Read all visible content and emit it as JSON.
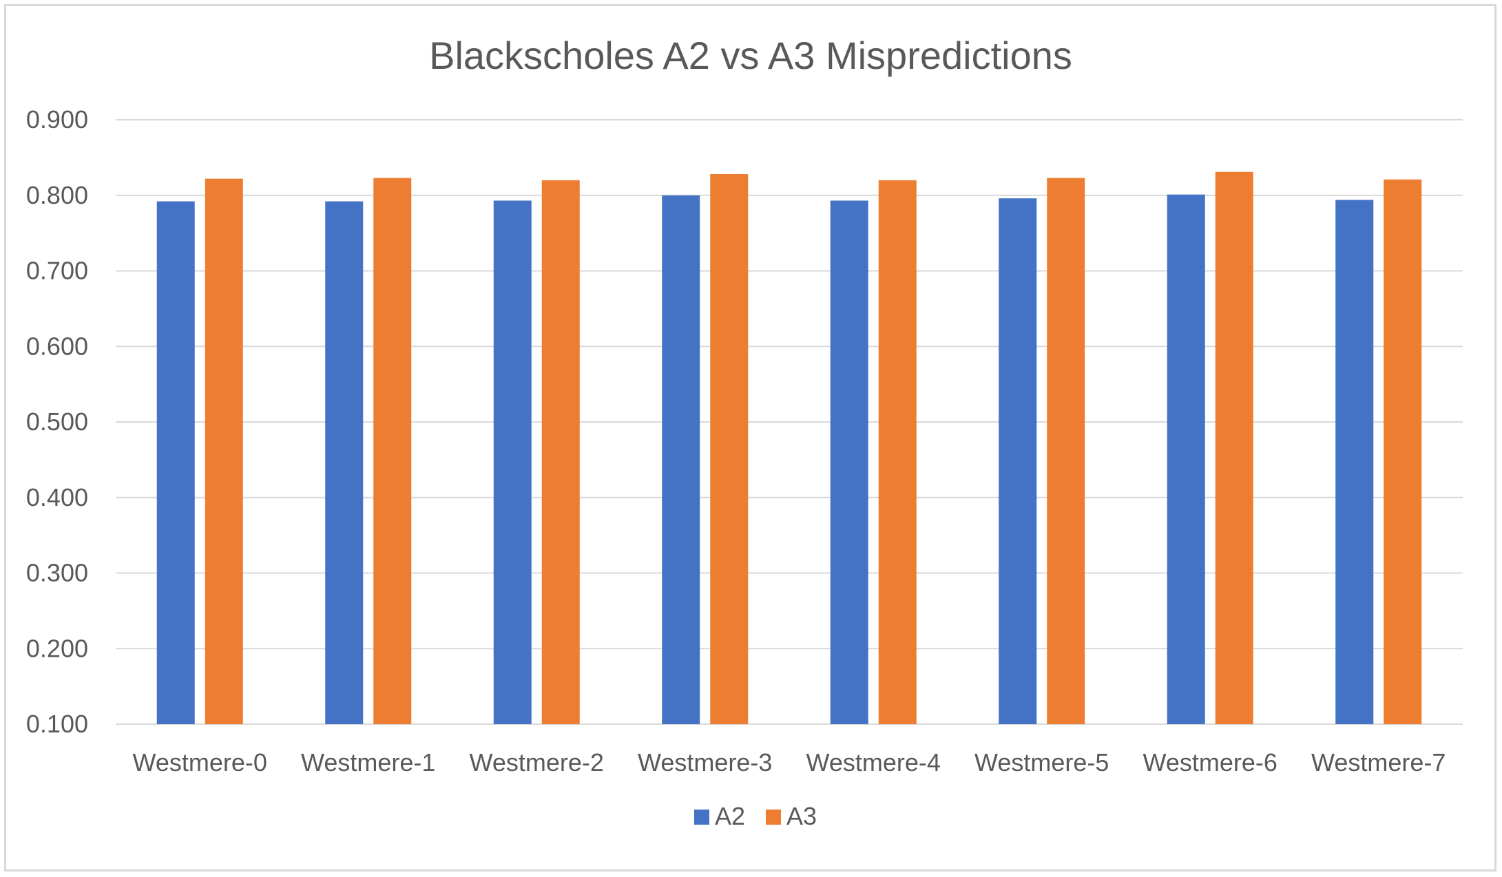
{
  "chart_data": {
    "type": "bar",
    "title": "Blackscholes A2 vs A3 Mispredictions",
    "xlabel": "",
    "ylabel": "",
    "categories": [
      "Westmere-0",
      "Westmere-1",
      "Westmere-2",
      "Westmere-3",
      "Westmere-4",
      "Westmere-5",
      "Westmere-6",
      "Westmere-7"
    ],
    "series": [
      {
        "name": "A2",
        "color": "#4472c4",
        "values": [
          0.792,
          0.792,
          0.793,
          0.8,
          0.793,
          0.796,
          0.801,
          0.794
        ]
      },
      {
        "name": "A3",
        "color": "#ed7d31",
        "values": [
          0.822,
          0.823,
          0.82,
          0.828,
          0.82,
          0.823,
          0.831,
          0.821
        ]
      }
    ],
    "ylim": [
      0.1,
      0.9
    ],
    "yticks": [
      "0.100",
      "0.200",
      "0.300",
      "0.400",
      "0.500",
      "0.600",
      "0.700",
      "0.800",
      "0.900"
    ],
    "grid": true,
    "legend_position": "bottom"
  }
}
